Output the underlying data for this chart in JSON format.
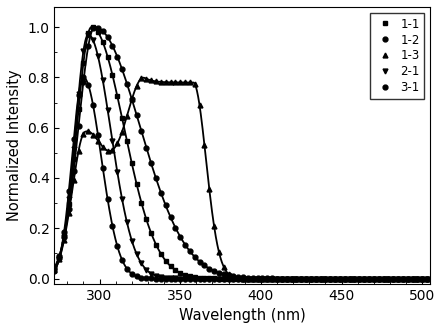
{
  "title": "",
  "xlabel": "Wavelength (nm)",
  "ylabel": "Normalized Intensity",
  "xlim": [
    272,
    505
  ],
  "ylim": [
    -0.02,
    1.08
  ],
  "xticks": [
    300,
    350,
    400,
    450,
    500
  ],
  "yticks": [
    0.0,
    0.2,
    0.4,
    0.6,
    0.8,
    1.0
  ],
  "series": [
    {
      "label": "1-1",
      "marker": "s",
      "peak": 295,
      "peak_val": 1.0,
      "sigma_l": 9,
      "sigma_r": 20
    },
    {
      "label": "1-2",
      "marker": "o",
      "peak": 297,
      "peak_val": 1.0,
      "sigma_l": 10,
      "sigma_r": 28
    },
    {
      "label": "1-3",
      "marker": "^",
      "peak": 295,
      "peak_val": 1.0,
      "sigma_l": 9,
      "sigma_r": 80
    },
    {
      "label": "2-1",
      "marker": "v",
      "peak": 293,
      "peak_val": 0.97,
      "sigma_l": 8,
      "sigma_r": 14
    },
    {
      "label": "3-1",
      "marker": "o",
      "peak": 290,
      "peak_val": 0.8,
      "sigma_l": 7,
      "sigma_r": 11
    }
  ],
  "curve_13": {
    "peak1": 291,
    "val1": 0.57,
    "s1l": 8,
    "s1r": 14,
    "peak2": 345,
    "val2": 0.78,
    "s2l": 14,
    "s2r": 10,
    "flat_start": 328,
    "flat_end": 358,
    "flat_val": 0.78
  },
  "background_color": "#ffffff",
  "linewidth": 1.3,
  "markersize": 3.5,
  "marker_every": 4
}
